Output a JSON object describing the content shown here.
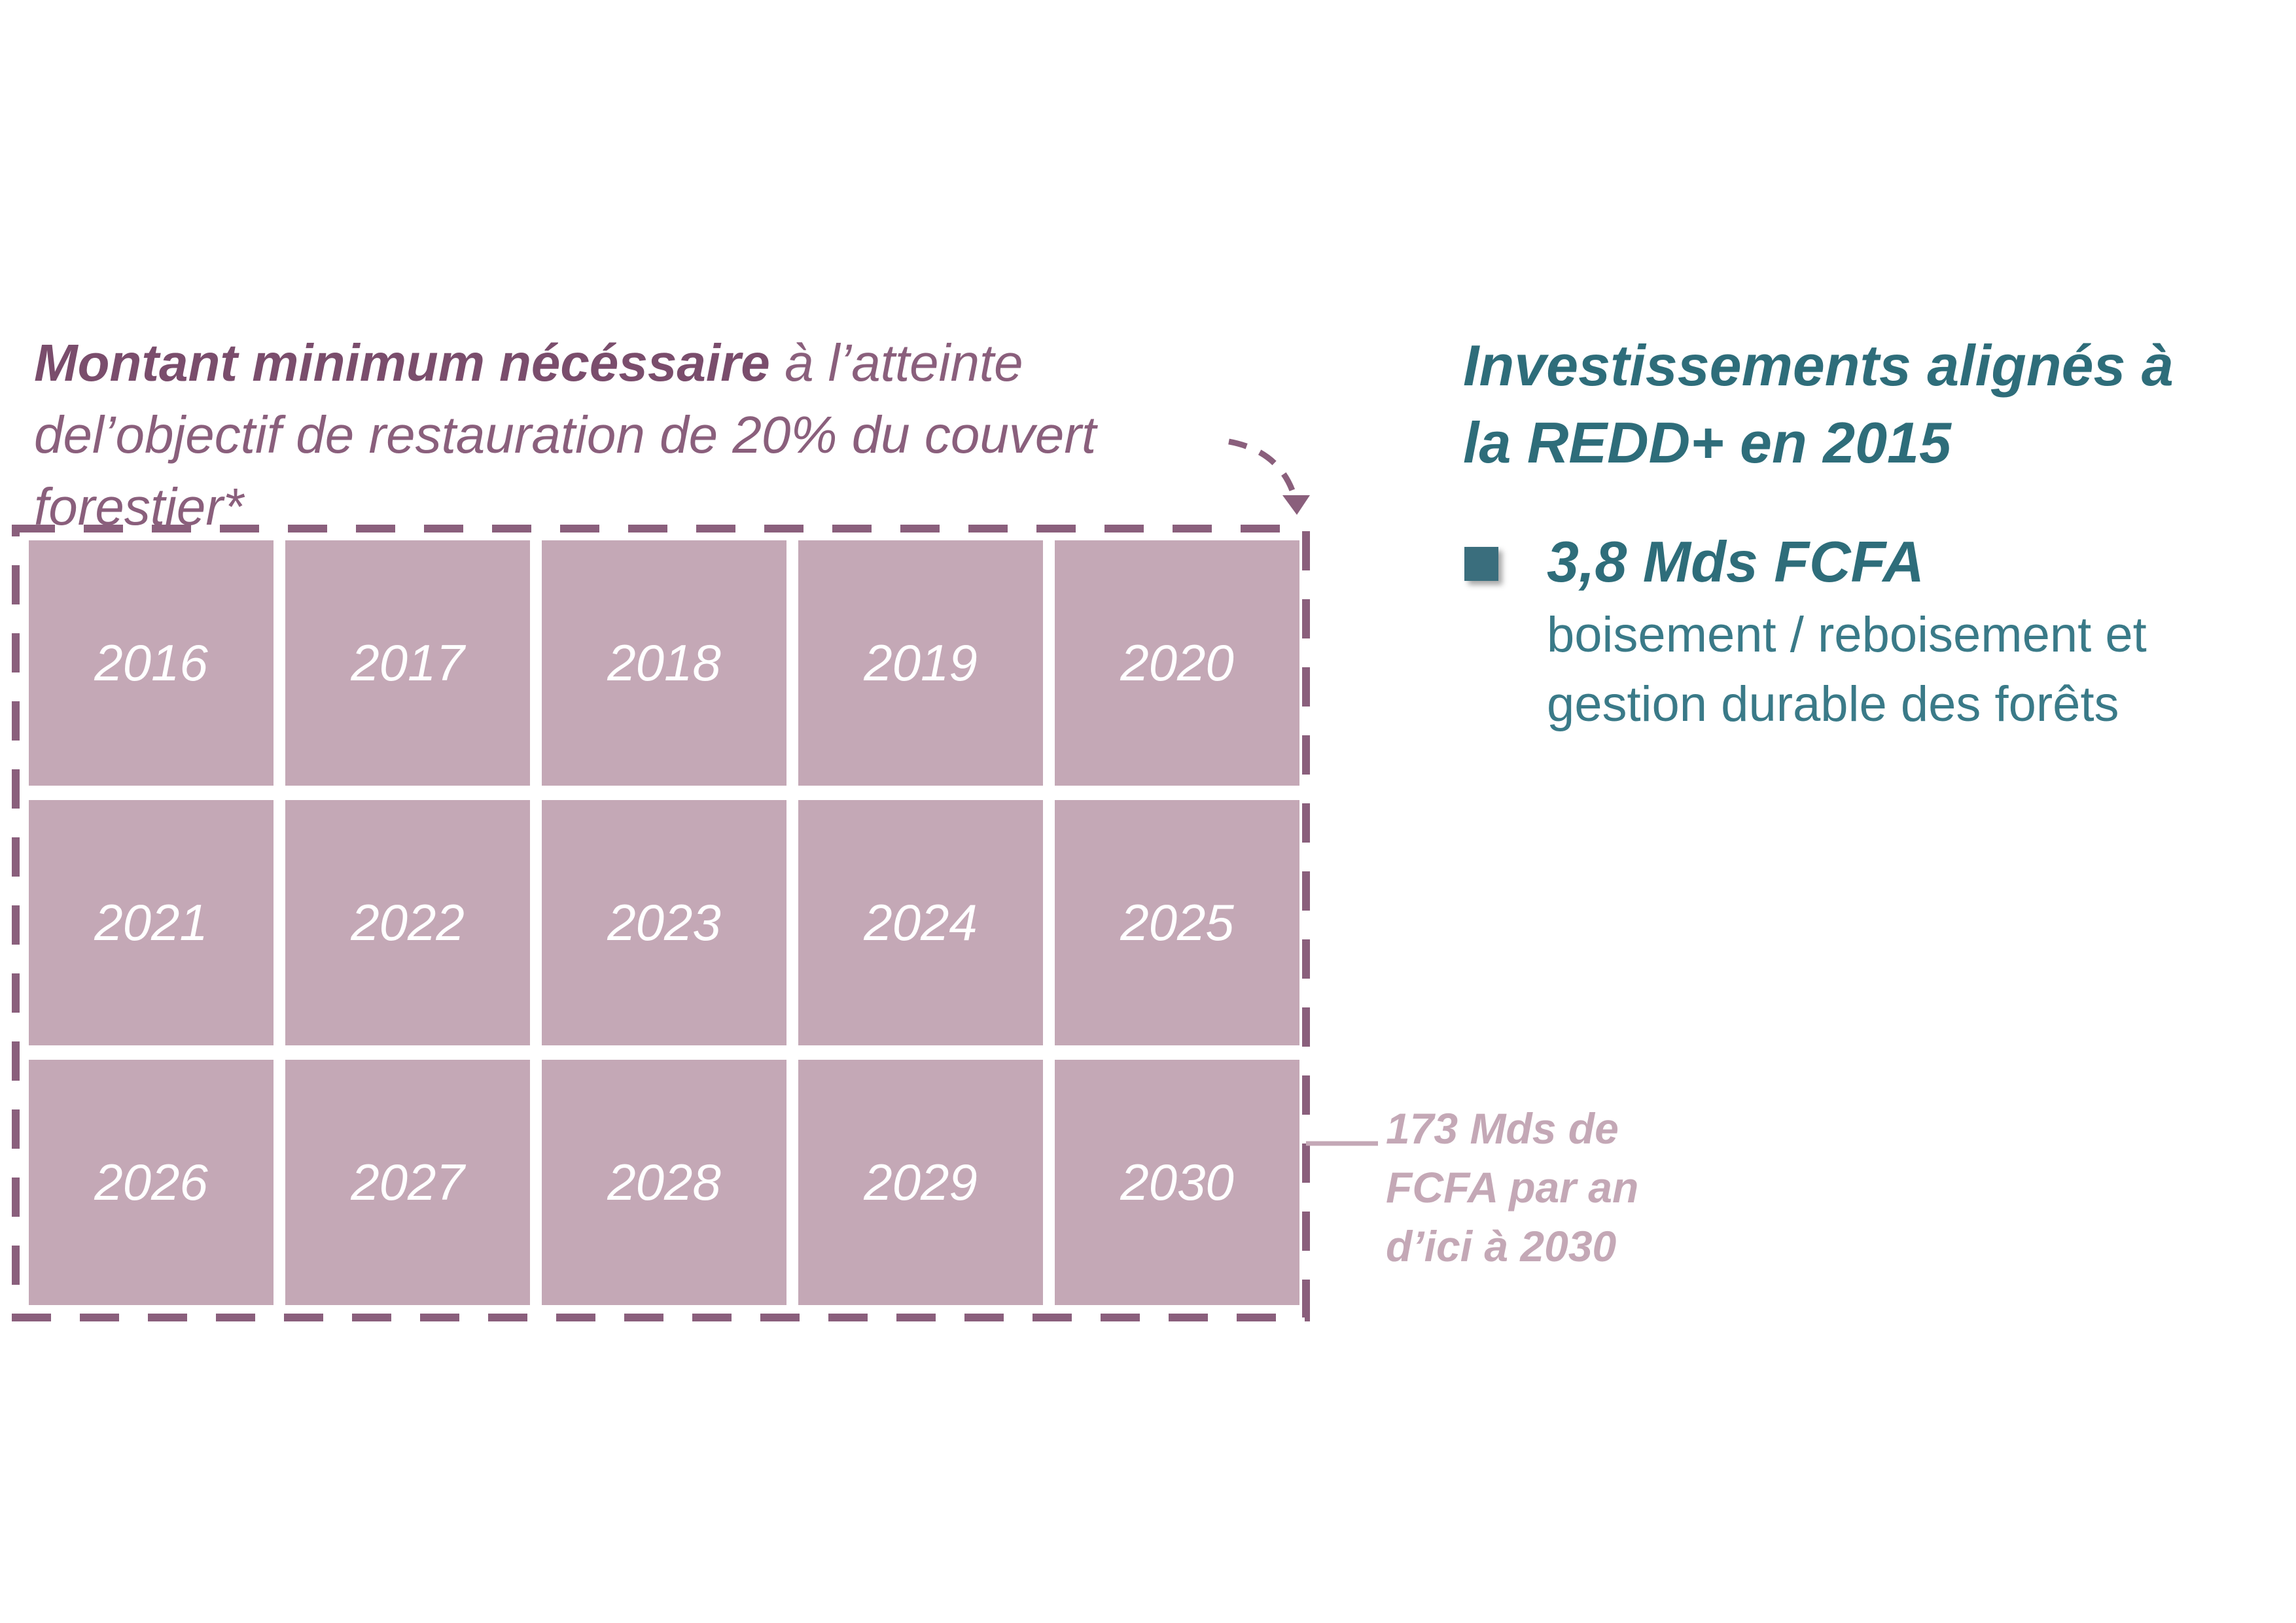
{
  "left_title": {
    "strong": "Montant minimum nécéssaire",
    "rest": " à l’atteinte del’objectif de restauration de 20% du couvert forestier*"
  },
  "years": [
    "2016",
    "2017",
    "2018",
    "2019",
    "2020",
    "2021",
    "2022",
    "2023",
    "2024",
    "2025",
    "2026",
    "2027",
    "2028",
    "2029",
    "2030"
  ],
  "annotation": {
    "line1": "173 Mds de",
    "line2": "FCFA par an",
    "line3": "d’ici à 2030"
  },
  "right_title": {
    "line1": "Investissements alignés à",
    "line2": "la REDD+ en 2015"
  },
  "legend": {
    "value": "3,8 Mds FCFA",
    "desc_line1": "boisement / reboisement et",
    "desc_line2": "gestion durable des forêts"
  },
  "colors": {
    "plum": "#8a5f7c",
    "cell": "#c4a8b6",
    "teal": "#2e6d7a"
  }
}
